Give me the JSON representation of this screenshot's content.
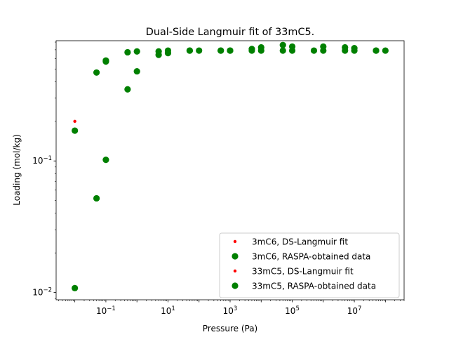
{
  "chart_data": {
    "type": "scatter",
    "title": "Dual-Side Langmuir fit of 33mC5.",
    "xlabel": "Pressure (Pa)",
    "ylabel": "Loading (mol/kg)",
    "xscale": "log",
    "yscale": "log",
    "xlim": [
      0.0025,
      400000000
    ],
    "ylim": [
      0.0088,
      0.82
    ],
    "grid": false,
    "legend_position": "lower right",
    "x_ticks": [
      {
        "value": 0.1,
        "base": "10",
        "exp": "−1"
      },
      {
        "value": 10,
        "base": "10",
        "exp": "1"
      },
      {
        "value": 1000,
        "base": "10",
        "exp": "3"
      },
      {
        "value": 100000,
        "base": "10",
        "exp": "5"
      },
      {
        "value": 10000000,
        "base": "10",
        "exp": "7"
      }
    ],
    "y_ticks": [
      {
        "value": 0.01,
        "base": "10",
        "exp": "−2"
      },
      {
        "value": 0.1,
        "base": "10",
        "exp": "−1"
      }
    ],
    "series": [
      {
        "name": "3mC6, DS-Langmuir fit",
        "color": "#ff0000",
        "marker": "small-dot",
        "points": [
          [
            0.01,
            0.2
          ]
        ]
      },
      {
        "name": "3mC6, RASPA-obtained data",
        "color": "#008000",
        "marker": "circle",
        "points": [
          [
            0.01,
            0.17
          ],
          [
            0.05,
            0.47
          ],
          [
            0.1,
            0.58
          ],
          [
            0.5,
            0.67
          ],
          [
            1,
            0.68
          ],
          [
            5,
            0.68
          ],
          [
            10,
            0.69
          ],
          [
            50,
            0.69
          ],
          [
            100,
            0.69
          ],
          [
            500,
            0.69
          ],
          [
            1000,
            0.69
          ],
          [
            5000,
            0.71
          ],
          [
            10000,
            0.73
          ],
          [
            50000,
            0.76
          ],
          [
            100000,
            0.74
          ],
          [
            500000,
            0.69
          ],
          [
            1000000,
            0.74
          ],
          [
            5000000,
            0.73
          ],
          [
            10000000,
            0.72
          ],
          [
            50000000,
            0.69
          ],
          [
            100000000,
            0.69
          ]
        ]
      },
      {
        "name": "33mC5, DS-Langmuir fit",
        "color": "#ff0000",
        "marker": "small-dot",
        "points": []
      },
      {
        "name": "33mC5, RASPA-obtained data",
        "color": "#008000",
        "marker": "circle",
        "points": [
          [
            0.01,
            0.0108
          ],
          [
            0.05,
            0.052
          ],
          [
            0.1,
            0.102
          ],
          [
            0.1,
            0.57
          ],
          [
            0.5,
            0.35
          ],
          [
            1,
            0.48
          ],
          [
            5,
            0.64
          ],
          [
            10,
            0.66
          ],
          [
            50,
            0.69
          ],
          [
            500,
            0.69
          ],
          [
            1000,
            0.69
          ],
          [
            5000,
            0.69
          ],
          [
            10000,
            0.69
          ],
          [
            50000,
            0.69
          ],
          [
            100000,
            0.69
          ],
          [
            1000000,
            0.69
          ],
          [
            5000000,
            0.69
          ],
          [
            10000000,
            0.69
          ],
          [
            50000000,
            0.69
          ]
        ]
      }
    ]
  }
}
